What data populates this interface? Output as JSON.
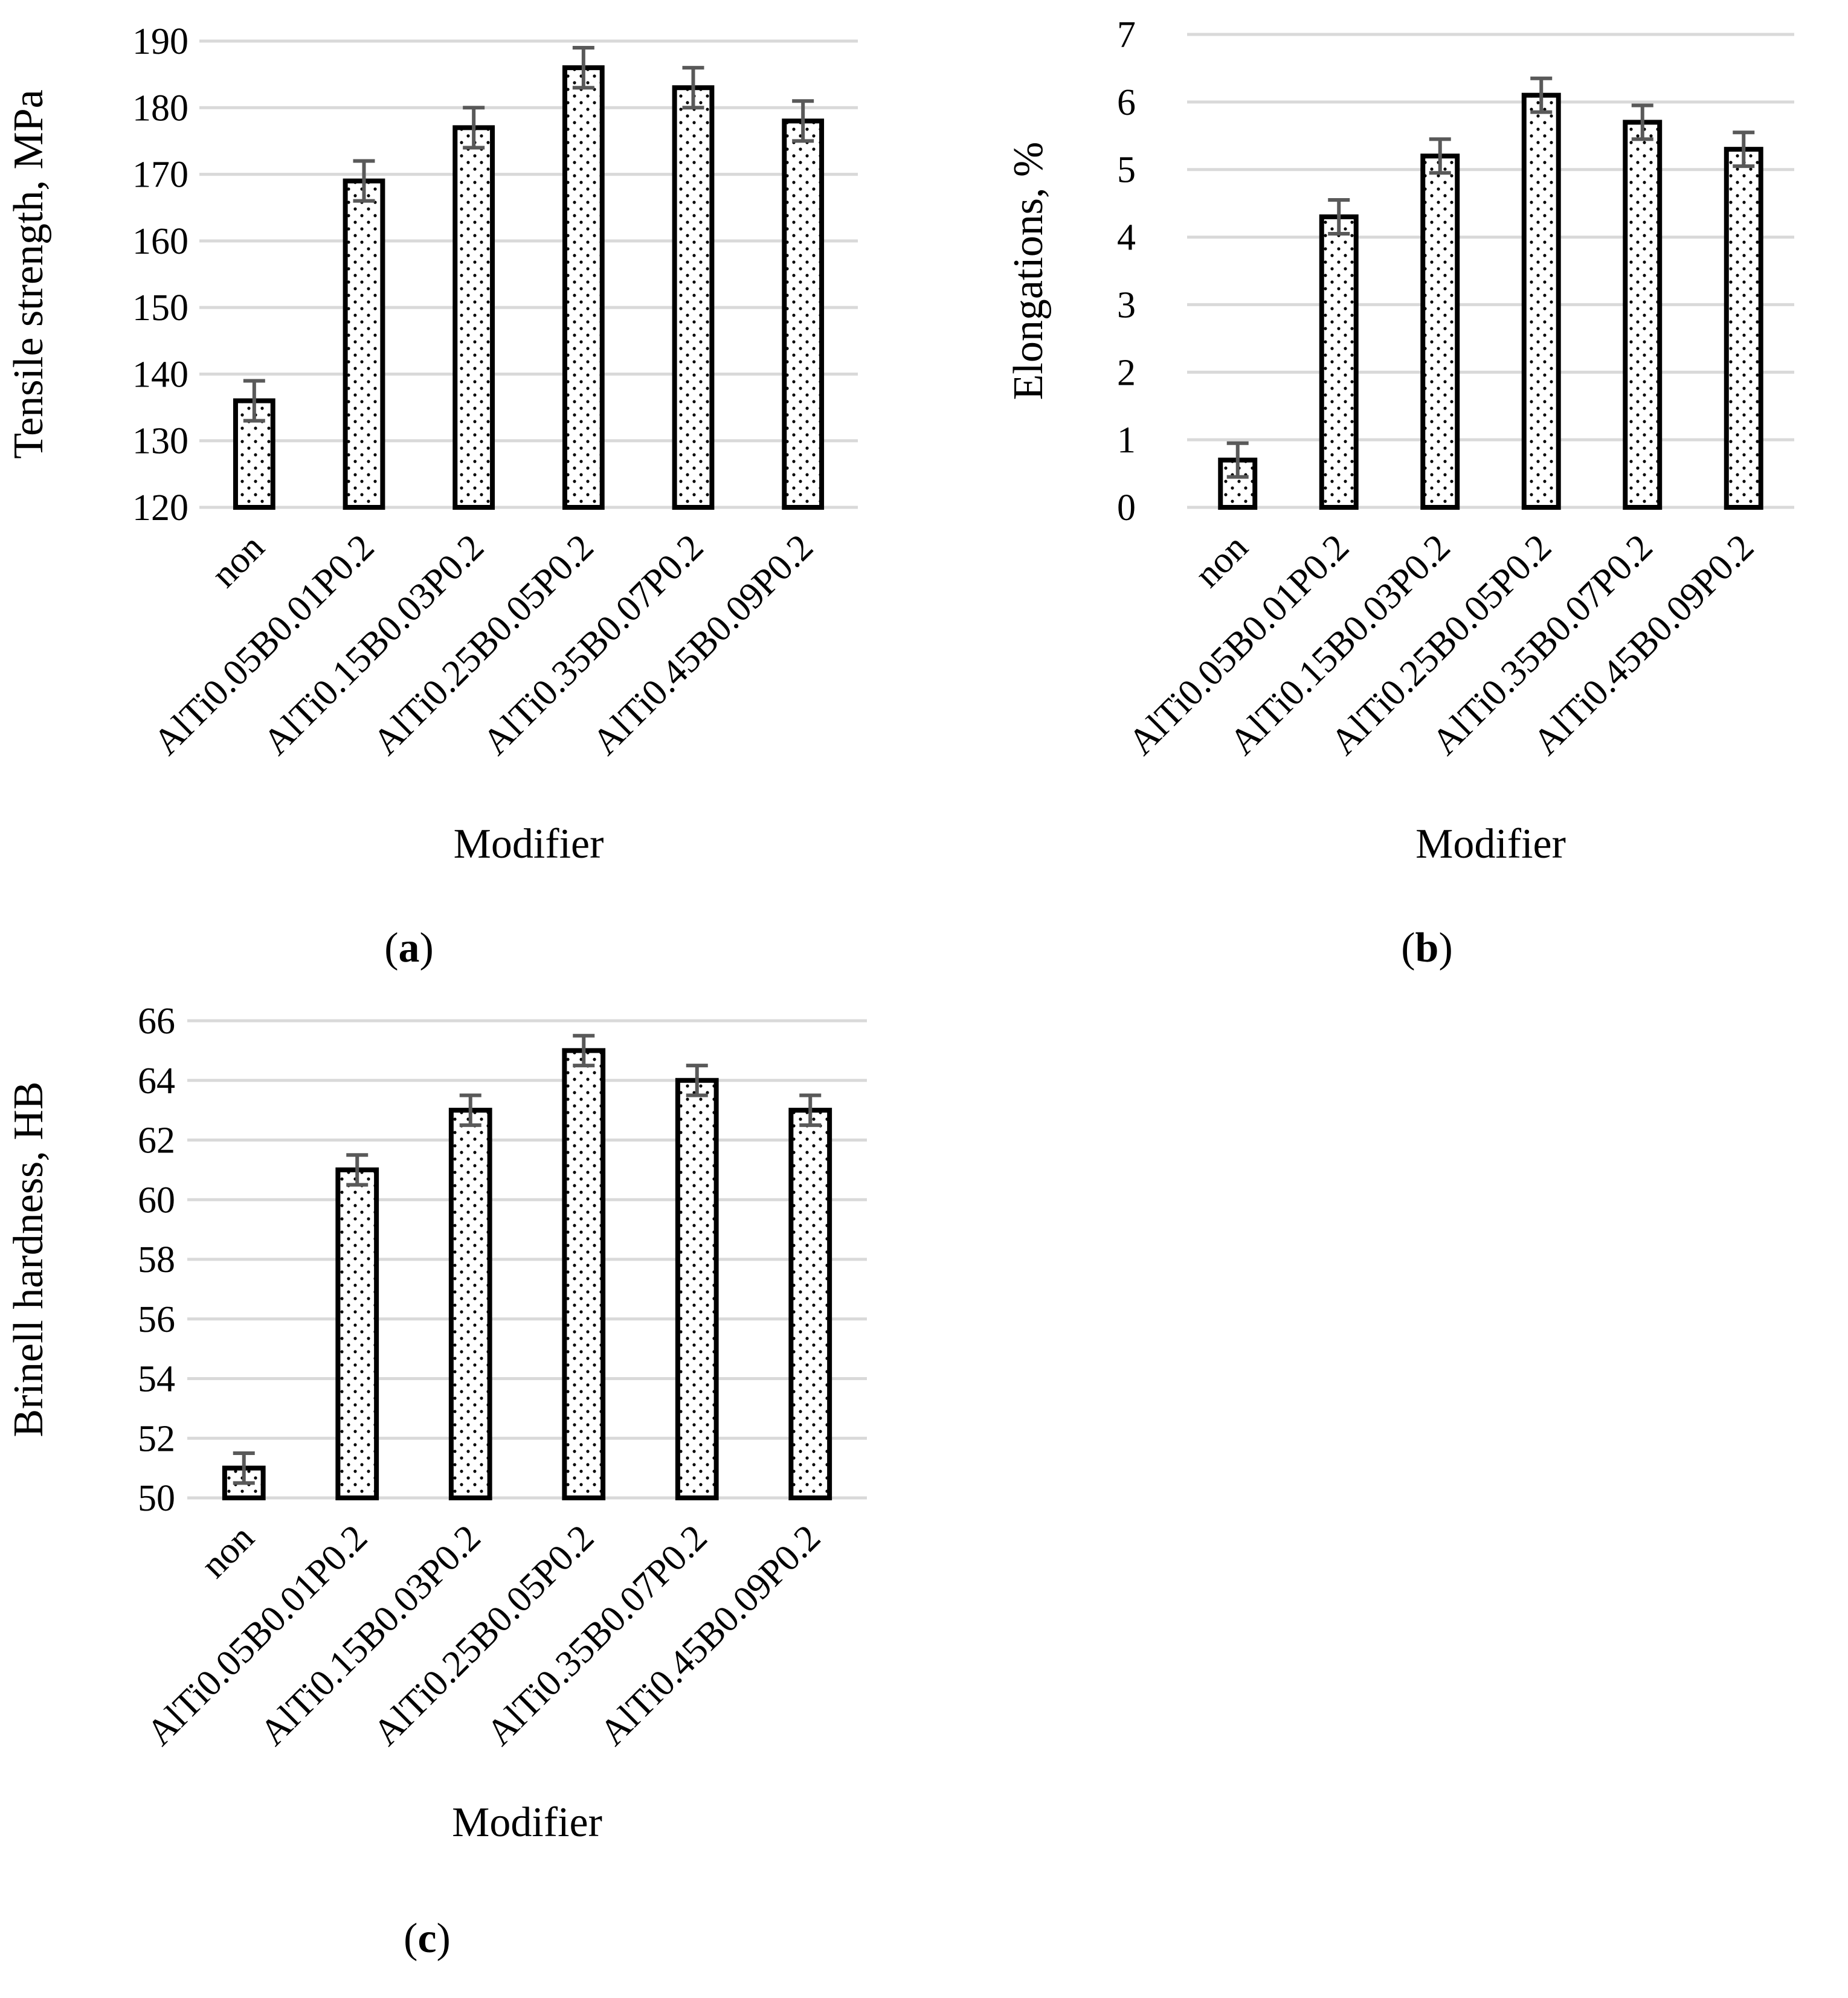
{
  "chart_data": [
    {
      "type": "bar",
      "title": "",
      "panel_label": "a",
      "categories": [
        "non",
        "AlTi0.05B0.01P0.2",
        "AlTi0.15B0.03P0.2",
        "AlTi0.25B0.05P0.2",
        "AlTi0.35B0.07P0.2",
        "AlTi0.45B0.09P0.2"
      ],
      "values": [
        136,
        169,
        177,
        186,
        183,
        178
      ],
      "errors": [
        3,
        3,
        3,
        3,
        3,
        3
      ],
      "xlabel": "Modifier",
      "ylabel": "Tensile strength, MPa",
      "ylim": [
        120,
        190
      ],
      "yticks": [
        120,
        130,
        140,
        150,
        160,
        170,
        180,
        190
      ],
      "grid": true
    },
    {
      "type": "bar",
      "title": "",
      "panel_label": "b",
      "categories": [
        "non",
        "AlTi0.05B0.01P0.2",
        "AlTi0.15B0.03P0.2",
        "AlTi0.25B0.05P0.2",
        "AlTi0.35B0.07P0.2",
        "AlTi0.45B0.09P0.2"
      ],
      "values": [
        0.7,
        4.3,
        5.2,
        6.1,
        5.7,
        5.3
      ],
      "errors": [
        0.25,
        0.25,
        0.25,
        0.25,
        0.25,
        0.25
      ],
      "xlabel": "Modifier",
      "ylabel": "Elongations, %",
      "ylim": [
        0,
        7
      ],
      "yticks": [
        0,
        1,
        2,
        3,
        4,
        5,
        6,
        7
      ],
      "grid": true
    },
    {
      "type": "bar",
      "title": "",
      "panel_label": "c",
      "categories": [
        "non",
        "AlTi0.05B0.01P0.2",
        "AlTi0.15B0.03P0.2",
        "AlTi0.25B0.05P0.2",
        "AlTi0.35B0.07P0.2",
        "AlTi0.45B0.09P0.2"
      ],
      "values": [
        51,
        61,
        63,
        65,
        64,
        63
      ],
      "errors": [
        0.5,
        0.5,
        0.5,
        0.5,
        0.5,
        0.5
      ],
      "xlabel": "Modifier",
      "ylabel": "Brinell hardness, HB",
      "ylim": [
        50,
        66
      ],
      "yticks": [
        50,
        52,
        54,
        56,
        58,
        60,
        62,
        64,
        66
      ],
      "grid": true
    }
  ]
}
